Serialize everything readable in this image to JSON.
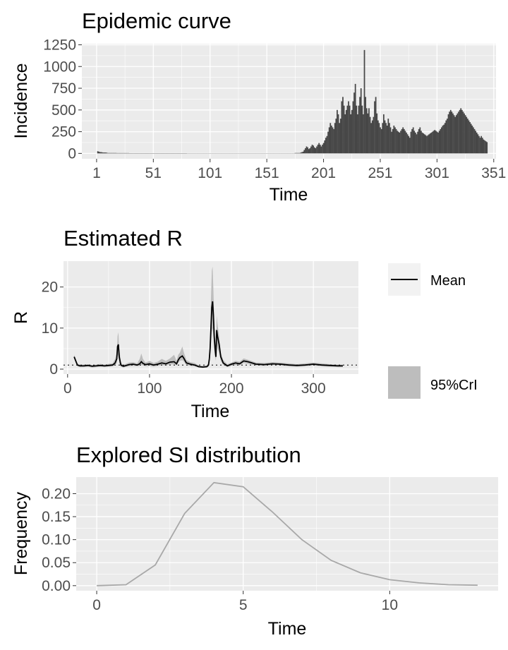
{
  "colors": {
    "panel_bg": "#ebebeb",
    "grid": "#ffffff",
    "bar": "#474747",
    "mean_line": "#000000",
    "ci_fill": "#bdbdbd",
    "si_line": "#a8a8a8",
    "tick_text": "#4d4d4d"
  },
  "chart_data": [
    {
      "type": "bar",
      "title": "Epidemic curve",
      "xlabel": "Time",
      "ylabel": "Incidence",
      "xlim": [
        -12,
        353
      ],
      "ylim": [
        -62,
        1262
      ],
      "x_ticks": [
        1,
        51,
        101,
        151,
        201,
        251,
        301,
        351
      ],
      "y_ticks": [
        0,
        250,
        500,
        750,
        1000,
        1250
      ],
      "grid": true,
      "series": [
        {
          "x_range": [
            1,
            336
          ],
          "values": [
            0,
            25,
            20,
            15,
            15,
            12,
            10,
            10,
            10,
            8,
            5,
            5,
            5,
            5,
            5,
            5,
            5,
            5,
            4,
            4,
            4,
            4,
            4,
            4,
            4,
            4,
            4,
            4,
            4,
            3,
            3,
            3,
            3,
            3,
            3,
            3,
            3,
            3,
            3,
            3,
            3,
            3,
            3,
            3,
            3,
            3,
            3,
            3,
            3,
            3,
            3,
            3,
            3,
            3,
            3,
            3,
            3,
            3,
            3,
            3,
            3,
            3,
            3,
            3,
            3,
            3,
            3,
            3,
            3,
            3,
            3,
            3,
            3,
            3,
            3,
            3,
            3,
            3,
            3,
            3,
            2,
            2,
            2,
            2,
            2,
            2,
            2,
            2,
            2,
            2,
            2,
            2,
            2,
            2,
            2,
            2,
            2,
            2,
            2,
            2,
            2,
            2,
            2,
            2,
            2,
            2,
            2,
            2,
            2,
            2,
            2,
            2,
            2,
            2,
            2,
            2,
            2,
            2,
            2,
            2,
            2,
            2,
            2,
            2,
            2,
            2,
            2,
            2,
            2,
            2,
            2,
            2,
            2,
            2,
            2,
            2,
            2,
            2,
            2,
            2,
            2,
            2,
            2,
            2,
            2,
            2,
            2,
            2,
            2,
            2,
            2,
            2,
            2,
            2,
            2,
            2,
            2,
            2,
            2,
            2,
            2,
            2,
            2,
            2,
            2,
            2,
            2,
            2,
            2,
            2,
            2,
            2,
            2,
            2,
            2,
            5,
            5,
            5,
            5,
            5,
            10,
            15,
            20,
            40,
            60,
            80,
            70,
            50,
            60,
            80,
            100,
            90,
            70,
            60,
            80,
            100,
            120,
            100,
            80,
            100,
            120,
            150,
            180,
            200,
            250,
            300,
            350,
            320,
            300,
            280,
            350,
            400,
            500,
            450,
            350,
            400,
            600,
            650,
            550,
            450,
            500,
            550,
            600,
            550,
            450,
            500,
            600,
            700,
            800,
            550,
            450,
            550,
            650,
            750,
            550,
            450,
            1190,
            650,
            520,
            460,
            520,
            420,
            350,
            380,
            420,
            600,
            650,
            460,
            380,
            350,
            300,
            280,
            350,
            450,
            380,
            350,
            320,
            400,
            350,
            300,
            250,
            280,
            320,
            300,
            280,
            260,
            250,
            240,
            260,
            280,
            300,
            280,
            260,
            240,
            220,
            200,
            180,
            250,
            280,
            300,
            260,
            240,
            220,
            250,
            280,
            300,
            260,
            240,
            230,
            220,
            210,
            200,
            210,
            220,
            230,
            240,
            250,
            260,
            270,
            260,
            250,
            240,
            260,
            280,
            300,
            320,
            330,
            350,
            380,
            400,
            450,
            480,
            500,
            480,
            460,
            440,
            420,
            440,
            460,
            480,
            500,
            520,
            500,
            480,
            460,
            440,
            420,
            400,
            380,
            360,
            340,
            320,
            300,
            280,
            260,
            240,
            220,
            200,
            180,
            200,
            180,
            160,
            150,
            140,
            130
          ]
        }
      ]
    },
    {
      "type": "line",
      "title": "Estimated R",
      "xlabel": "Time",
      "ylabel": "R",
      "xlim": [
        -5,
        355
      ],
      "ylim": [
        -1.2,
        26.3
      ],
      "x_ticks": [
        0,
        100,
        200,
        300
      ],
      "y_ticks": [
        0,
        10,
        20
      ],
      "grid": true,
      "reference_line": 1,
      "legend": {
        "position": "right",
        "entries": [
          "Mean",
          "95%CrI"
        ]
      },
      "series": [
        {
          "name": "Mean",
          "x": [
            8,
            10,
            12,
            15,
            20,
            25,
            30,
            35,
            40,
            45,
            50,
            55,
            58,
            60,
            61,
            62,
            63,
            65,
            68,
            70,
            75,
            80,
            85,
            88,
            90,
            92,
            95,
            100,
            105,
            110,
            115,
            120,
            125,
            130,
            133,
            135,
            137,
            140,
            142,
            145,
            150,
            155,
            160,
            165,
            170,
            172,
            173,
            174,
            175,
            176,
            177,
            178,
            179,
            180,
            181,
            182,
            183,
            185,
            187,
            190,
            195,
            200,
            205,
            210,
            215,
            220,
            230,
            240,
            250,
            260,
            270,
            280,
            290,
            300,
            310,
            320,
            330,
            336
          ],
          "values": [
            3,
            2,
            1,
            0.8,
            0.8,
            0.9,
            0.7,
            0.8,
            0.9,
            0.8,
            0.9,
            1,
            1.5,
            2.5,
            5.5,
            6,
            3,
            1,
            0.7,
            0.8,
            1.1,
            1.2,
            1,
            1.3,
            1.8,
            1.4,
            1.1,
            1.3,
            1,
            1.2,
            1.5,
            1.3,
            1.7,
            1.8,
            1.3,
            2.2,
            2.8,
            3.2,
            2.6,
            1.5,
            1.2,
            1,
            0.6,
            0.5,
            0.6,
            1,
            2.5,
            5,
            10,
            15,
            16.5,
            13,
            8,
            5,
            3,
            9.5,
            8,
            6,
            3,
            1.5,
            0.8,
            1.2,
            1.5,
            1.3,
            2,
            1.8,
            1.2,
            1.1,
            1.3,
            1.2,
            1,
            0.9,
            1,
            1.2,
            1,
            0.9,
            0.8,
            0.8
          ]
        },
        {
          "name": "95%CrI",
          "x": [
            8,
            10,
            12,
            15,
            20,
            25,
            30,
            35,
            40,
            45,
            50,
            55,
            58,
            60,
            61,
            62,
            63,
            65,
            68,
            70,
            75,
            80,
            85,
            88,
            90,
            92,
            95,
            100,
            105,
            110,
            115,
            120,
            125,
            130,
            133,
            135,
            137,
            140,
            142,
            145,
            150,
            155,
            160,
            165,
            170,
            172,
            173,
            174,
            175,
            176,
            177,
            178,
            179,
            180,
            181,
            182,
            183,
            185,
            187,
            190,
            195,
            200,
            205,
            210,
            215,
            220,
            230,
            240,
            250,
            260,
            270,
            280,
            290,
            300,
            310,
            320,
            330,
            336
          ],
          "lower": [
            2.5,
            1.5,
            0.7,
            0.5,
            0.5,
            0.6,
            0.4,
            0.5,
            0.6,
            0.5,
            0.6,
            0.7,
            1,
            1.5,
            3,
            3.5,
            1.5,
            0.6,
            0.4,
            0.5,
            0.7,
            0.8,
            0.7,
            0.8,
            1.1,
            0.9,
            0.7,
            0.8,
            0.6,
            0.8,
            1,
            0.9,
            1.1,
            1.2,
            0.9,
            1.5,
            2,
            2.2,
            1.8,
            1,
            0.8,
            0.7,
            0.4,
            0.3,
            0.4,
            0.6,
            1.5,
            3,
            6,
            9,
            10,
            8,
            5,
            3,
            2,
            6,
            5,
            4,
            2,
            1,
            0.5,
            0.8,
            1,
            0.9,
            1.5,
            1.3,
            0.9,
            0.8,
            1,
            0.9,
            0.7,
            0.6,
            0.7,
            0.9,
            0.7,
            0.6,
            0.5,
            0.5
          ],
          "upper": [
            3.5,
            2.5,
            1.4,
            1.1,
            1.1,
            1.2,
            1,
            1.1,
            1.3,
            1.1,
            1.3,
            1.4,
            2.5,
            4,
            8,
            9,
            5,
            1.6,
            1,
            1.2,
            1.6,
            1.7,
            1.4,
            2.5,
            3.8,
            2.5,
            1.6,
            2,
            1.5,
            1.8,
            2.5,
            2,
            2.6,
            3.5,
            2,
            3.5,
            4,
            5.5,
            4,
            2.2,
            1.7,
            1.5,
            0.9,
            0.8,
            0.9,
            1.5,
            4,
            8,
            17,
            24,
            25,
            19,
            12,
            8,
            5,
            13,
            11,
            8,
            4,
            2.2,
            1.2,
            1.6,
            2,
            1.8,
            2.6,
            2.3,
            1.6,
            1.5,
            1.7,
            1.6,
            1.4,
            1.2,
            1.4,
            1.6,
            1.4,
            1.2,
            1.1,
            1.1
          ]
        }
      ]
    },
    {
      "type": "line",
      "title": "Explored SI distribution",
      "xlabel": "Time",
      "ylabel": "Frequency",
      "xlim": [
        -0.7,
        13.7
      ],
      "ylim": [
        -0.011,
        0.236
      ],
      "x_ticks": [
        0,
        5,
        10
      ],
      "y_ticks": [
        "0.00",
        "0.05",
        "0.10",
        "0.15",
        "0.20"
      ],
      "grid": true,
      "series": [
        {
          "x": [
            0,
            1,
            2,
            3,
            4,
            5,
            6,
            7,
            8,
            9,
            10,
            11,
            12,
            13
          ],
          "values": [
            0,
            0.002,
            0.045,
            0.157,
            0.224,
            0.215,
            0.16,
            0.1,
            0.055,
            0.028,
            0.013,
            0.006,
            0.002,
            0.001
          ]
        }
      ]
    }
  ]
}
